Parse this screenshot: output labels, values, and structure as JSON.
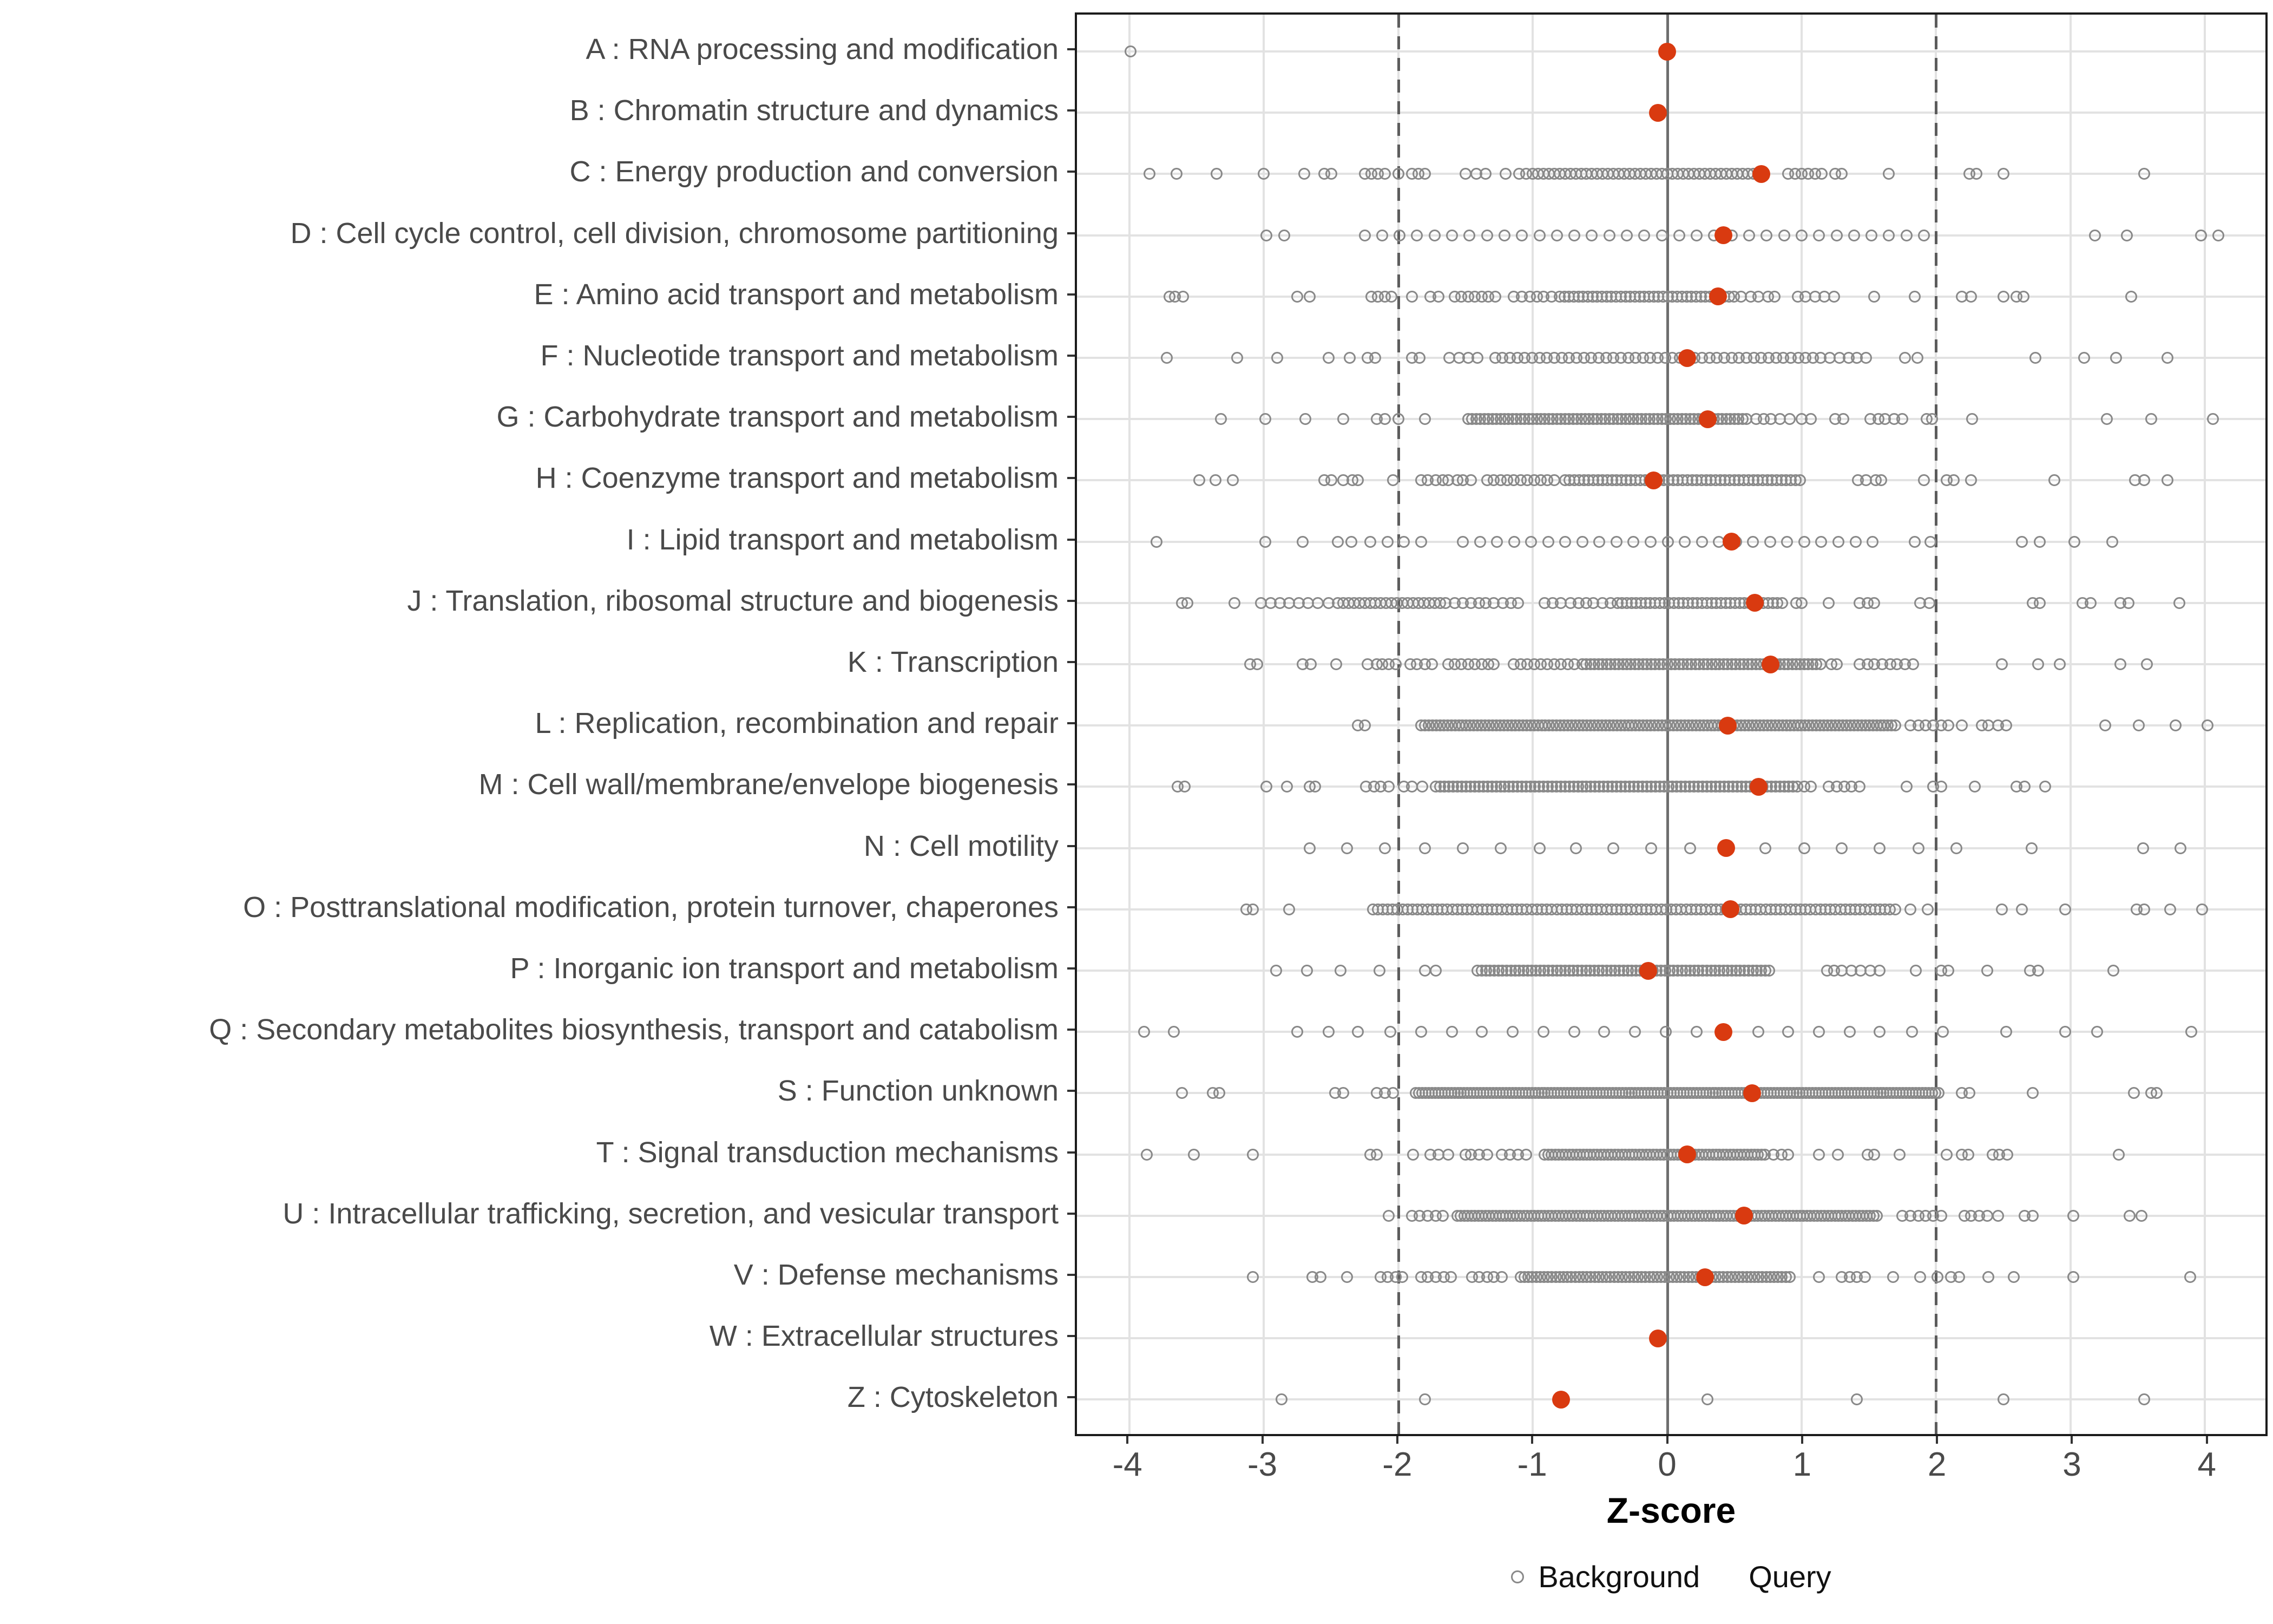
{
  "chart_data": {
    "type": "scatter",
    "title": "",
    "xlabel": "Z-score",
    "x_ticks": [
      -4,
      -3,
      -2,
      -1,
      0,
      1,
      2,
      3,
      4
    ],
    "axis": {
      "panel_z_range": [
        -4.39,
        4.45
      ],
      "grid": "major-only",
      "legend_position": "bottom-center"
    },
    "reference_lines": {
      "solid_at": 0,
      "dashed_at": [
        -2,
        2
      ]
    },
    "series_colors": {
      "background": "#898989",
      "query": "#d93a10"
    },
    "legend": [
      {
        "label": "Background",
        "marker": "open-circle",
        "color": "#898989"
      },
      {
        "label": "Query",
        "marker": "filled-circle",
        "color": "#d93a10"
      }
    ],
    "categories": [
      {
        "label": "A : RNA processing and modification",
        "query": 0.0,
        "background": [
          -3.99
        ],
        "background_bands": []
      },
      {
        "label": "B : Chromatin structure and dynamics",
        "query": -0.07,
        "background": [],
        "background_bands": []
      },
      {
        "label": "C : Energy production and conversion",
        "query": 0.7,
        "background": [
          -3.85,
          -3.65,
          -3.35,
          -3.0,
          -2.7,
          -2.55,
          -2.5,
          -2.25,
          -2.2,
          -2.15,
          -2.1,
          -2.0,
          -1.9,
          -1.85,
          -1.8,
          -1.5,
          -1.42,
          -1.35,
          -1.2,
          -1.1,
          -1.05,
          0.9,
          0.95,
          1.0,
          1.05,
          1.1,
          1.15,
          1.25,
          1.3,
          1.65,
          2.25,
          2.3,
          2.5,
          3.55
        ],
        "background_bands": [
          [
            -1.0,
            0.66,
            0.04
          ]
        ]
      },
      {
        "label": "D : Cell cycle control, cell division, chromosome partitioning",
        "query": 0.42,
        "background": [
          -2.98,
          -2.85,
          3.18,
          3.42,
          3.97,
          4.1
        ],
        "background_bands": [
          [
            -2.25,
            2.0,
            0.13
          ]
        ]
      },
      {
        "label": "E : Amino acid transport and metabolism",
        "query": 0.38,
        "background": [
          -3.7,
          -3.66,
          -3.6,
          -2.75,
          -2.66,
          -2.2,
          -2.15,
          -2.1,
          -2.05,
          -1.9,
          -1.76,
          -1.7,
          -1.58,
          -1.53,
          -1.48,
          -1.43,
          -1.38,
          -1.33,
          -1.28,
          -1.14,
          -1.08,
          -1.02,
          -0.97,
          -0.92,
          -0.86,
          0.55,
          0.62,
          0.68,
          0.75,
          0.8,
          0.97,
          1.03,
          1.1,
          1.17,
          1.24,
          1.54,
          1.84,
          2.19,
          2.26,
          2.5,
          2.6,
          2.65,
          3.45
        ],
        "background_bands": [
          [
            -0.8,
            0.52,
            0.035
          ]
        ]
      },
      {
        "label": "F : Nucleotide transport and metabolism",
        "query": 0.15,
        "background": [
          -3.72,
          -3.2,
          -2.9,
          -2.52,
          -2.36,
          -2.23,
          -2.17,
          -1.9,
          -1.84,
          -1.62,
          -1.55,
          -1.48,
          -1.41,
          1.21,
          1.28,
          1.35,
          1.41,
          1.48,
          1.77,
          1.86,
          2.74,
          3.1,
          3.34,
          3.72
        ],
        "background_bands": [
          [
            -1.28,
            1.14,
            0.055
          ]
        ]
      },
      {
        "label": "G : Carbohydrate transport and metabolism",
        "query": 0.3,
        "background": [
          -3.32,
          -2.99,
          -2.69,
          -2.41,
          -2.16,
          -2.1,
          -2.0,
          -1.8,
          0.66,
          0.72,
          0.77,
          0.84,
          0.91,
          1.0,
          1.07,
          1.25,
          1.31,
          1.51,
          1.57,
          1.62,
          1.69,
          1.75,
          1.93,
          1.97,
          2.27,
          3.27,
          3.6,
          4.06
        ],
        "background_bands": [
          [
            -1.48,
            0.6,
            0.03
          ]
        ]
      },
      {
        "label": "H : Coenzyme transport and metabolism",
        "query": -0.1,
        "background": [
          -3.48,
          -3.36,
          -3.23,
          -2.55,
          -2.5,
          -2.41,
          -2.34,
          -2.3,
          -2.04,
          -1.83,
          -1.78,
          -1.72,
          -1.67,
          -1.63,
          -1.56,
          -1.52,
          -1.46,
          1.42,
          1.48,
          1.55,
          1.59,
          1.91,
          2.08,
          2.13,
          2.26,
          2.88,
          3.48,
          3.55,
          3.72
        ],
        "background_bands": [
          [
            -1.34,
            -0.82,
            0.05
          ],
          [
            -0.76,
            1.0,
            0.035
          ]
        ]
      },
      {
        "label": "I : Lipid transport and metabolism",
        "query": 0.48,
        "background": [
          -3.8,
          -2.99,
          -2.71,
          -2.45,
          -2.35,
          -2.21,
          -2.08,
          -1.96,
          -1.83,
          1.84,
          1.96,
          2.64,
          2.77,
          3.03,
          3.31
        ],
        "background_bands": [
          [
            -1.52,
            1.53,
            0.127
          ]
        ]
      },
      {
        "label": "J : Translation, ribosomal structure and biogenesis",
        "query": 0.65,
        "background": [
          -3.61,
          -3.57,
          -3.22,
          -3.02,
          -2.95,
          -2.88,
          -2.81,
          -2.74,
          -2.67,
          -2.6,
          -2.52,
          -1.58,
          -1.52,
          -1.46,
          -1.4,
          -1.35,
          -1.29,
          -1.22,
          -1.16,
          -1.11,
          -0.91,
          -0.85,
          -0.79,
          -0.72,
          -0.66,
          -0.6,
          -0.55,
          -0.48,
          -0.42,
          0.96,
          1.0,
          1.2,
          1.43,
          1.49,
          1.54,
          1.88,
          1.95,
          2.72,
          2.77,
          3.09,
          3.15,
          3.37,
          3.43,
          3.81
        ],
        "background_bands": [
          [
            -2.45,
            -1.62,
            0.04
          ],
          [
            -0.37,
            0.88,
            0.035
          ]
        ]
      },
      {
        "label": "K : Transcription",
        "query": 0.77,
        "background": [
          -3.1,
          -3.05,
          -2.71,
          -2.65,
          -2.46,
          -2.23,
          -2.16,
          -2.12,
          -2.07,
          -2.02,
          -1.91,
          -1.86,
          -1.8,
          -1.75,
          -1.63,
          -1.58,
          -1.53,
          -1.48,
          -1.43,
          -1.38,
          -1.33,
          -1.29,
          1.22,
          1.26,
          1.43,
          1.49,
          1.54,
          1.6,
          1.66,
          1.71,
          1.77,
          1.83,
          2.49,
          2.76,
          2.92,
          3.37,
          3.57
        ],
        "background_bands": [
          [
            -1.14,
            -0.65,
            0.05
          ],
          [
            -0.63,
            1.16,
            0.03
          ]
        ]
      },
      {
        "label": "L : Replication, recombination and repair",
        "query": 0.45,
        "background": [
          -2.3,
          -2.25,
          1.81,
          1.87,
          1.92,
          1.98,
          2.04,
          2.09,
          2.19,
          2.34,
          2.39,
          2.46,
          2.52,
          3.26,
          3.51,
          3.78,
          4.02
        ],
        "background_bands": [
          [
            -1.83,
            1.7,
            0.028
          ]
        ]
      },
      {
        "label": "M : Cell wall/membrane/envelope biogenesis",
        "query": 0.68,
        "background": [
          -3.64,
          -3.59,
          -2.98,
          -2.83,
          -2.66,
          -2.62,
          -2.24,
          -2.18,
          -2.13,
          -2.07,
          -1.96,
          -1.9,
          -1.82,
          1.02,
          1.07,
          1.2,
          1.26,
          1.32,
          1.37,
          1.43,
          1.78,
          1.98,
          2.04,
          2.29,
          2.6,
          2.66,
          2.81
        ],
        "background_bands": [
          [
            -1.72,
            0.99,
            0.032
          ]
        ]
      },
      {
        "label": "N : Cell motility",
        "query": 0.44,
        "background": [
          -2.66,
          -2.38,
          -2.1,
          -1.8,
          -1.52,
          -1.24,
          -0.95,
          -0.68,
          -0.4,
          -0.12,
          0.17,
          0.73,
          1.02,
          1.3,
          1.58,
          1.87,
          2.15,
          2.71,
          3.54,
          3.82
        ],
        "background_bands": []
      },
      {
        "label": "O : Posttranslational modification, protein turnover, chaperones",
        "query": 0.47,
        "background": [
          -3.13,
          -3.08,
          -2.81,
          1.81,
          1.94,
          2.49,
          2.64,
          2.96,
          3.49,
          3.55,
          3.74,
          3.98
        ],
        "background_bands": [
          [
            -2.19,
            1.7,
            0.037
          ]
        ]
      },
      {
        "label": "P : Inorganic ion transport and metabolism",
        "query": -0.14,
        "background": [
          -2.91,
          -2.68,
          -2.43,
          -2.14,
          -1.8,
          -1.72,
          1.19,
          1.24,
          1.3,
          1.37,
          1.44,
          1.51,
          1.58,
          1.85,
          2.04,
          2.09,
          2.38,
          2.7,
          2.76,
          3.32
        ],
        "background_bands": [
          [
            -1.41,
            0.79,
            0.031
          ]
        ]
      },
      {
        "label": "Q : Secondary metabolites biosynthesis, transport and catabolism",
        "query": 0.42,
        "background": [
          -3.89,
          -3.67,
          -2.75,
          -2.52,
          -2.3,
          -2.06,
          -1.83,
          -1.6,
          -1.38,
          -1.15,
          -0.92,
          -0.69,
          -0.47,
          -0.24,
          -0.01,
          0.22,
          0.68,
          0.9,
          1.13,
          1.36,
          1.58,
          1.82,
          2.05,
          2.52,
          2.96,
          3.2,
          3.9
        ],
        "background_bands": []
      },
      {
        "label": "S : Function unknown",
        "query": 0.63,
        "background": [
          -3.61,
          -3.38,
          -3.33,
          -2.47,
          -2.41,
          -2.16,
          -2.1,
          -2.04,
          2.19,
          2.25,
          2.72,
          3.47,
          3.6,
          3.64
        ],
        "background_bands": [
          [
            -1.87,
            2.04,
            0.024
          ]
        ]
      },
      {
        "label": "T : Signal transduction mechanisms",
        "query": 0.15,
        "background": [
          -3.87,
          -3.52,
          -3.08,
          -2.21,
          -2.16,
          -1.89,
          -1.76,
          -1.7,
          -1.63,
          -1.5,
          -1.46,
          -1.4,
          -1.34,
          -1.23,
          -1.17,
          -1.11,
          -1.05,
          0.79,
          0.85,
          0.9,
          1.13,
          1.27,
          1.49,
          1.54,
          1.73,
          2.08,
          2.19,
          2.24,
          2.42,
          2.47,
          2.53,
          3.36
        ],
        "background_bands": [
          [
            -0.91,
            0.73,
            0.026
          ]
        ]
      },
      {
        "label": "U : Intracellular trafficking, secretion, and vesicular transport",
        "query": 0.57,
        "background": [
          -2.07,
          -1.9,
          -1.84,
          -1.78,
          -1.72,
          -1.67,
          1.75,
          1.81,
          1.87,
          1.92,
          1.98,
          2.04,
          2.21,
          2.26,
          2.32,
          2.38,
          2.46,
          2.66,
          2.72,
          3.02,
          3.44,
          3.53
        ],
        "background_bands": [
          [
            -1.56,
            1.58,
            0.026
          ]
        ]
      },
      {
        "label": "V : Defense mechanisms",
        "query": 0.28,
        "background": [
          -3.08,
          -2.64,
          -2.58,
          -2.38,
          -2.13,
          -2.08,
          -2.02,
          -1.97,
          -1.83,
          -1.78,
          -1.72,
          -1.66,
          -1.61,
          -1.45,
          -1.4,
          -1.34,
          -1.29,
          -1.23,
          1.13,
          1.3,
          1.36,
          1.41,
          1.47,
          1.68,
          1.88,
          2.01,
          2.11,
          2.17,
          2.39,
          2.58,
          3.02,
          3.89
        ],
        "background_bands": [
          [
            -1.09,
            0.93,
            0.029
          ]
        ]
      },
      {
        "label": "W : Extracellular structures",
        "query": -0.07,
        "background": [],
        "background_bands": []
      },
      {
        "label": "Z : Cytoskeleton",
        "query": -0.79,
        "background": [
          -2.87,
          -1.8,
          0.3,
          1.41,
          2.5,
          3.55
        ],
        "background_bands": []
      }
    ]
  }
}
